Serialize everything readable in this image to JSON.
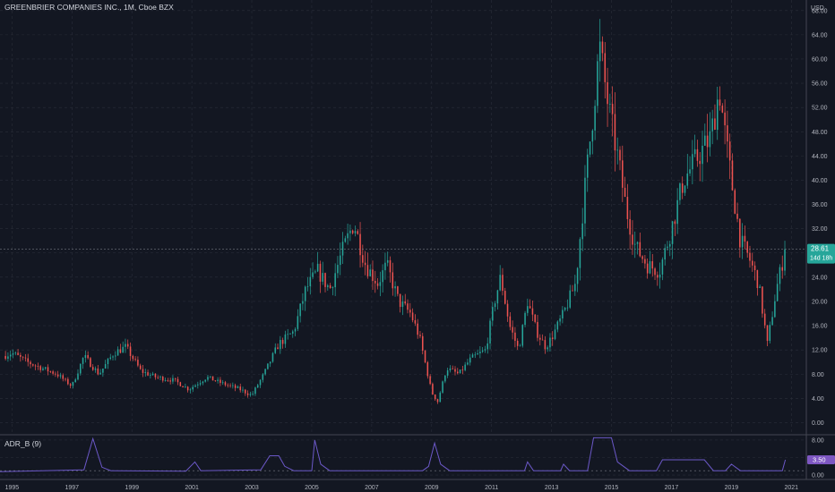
{
  "header": {
    "symbol_title": "GREENBRIER COMPANIES INC., 1M, Cboe BZX"
  },
  "indicator": {
    "title": "ADR_B (9)"
  },
  "colors": {
    "background": "#131722",
    "up": "#26a69a",
    "down": "#ef5350",
    "grid": "#2a2e39",
    "axis_text": "#b2b5be",
    "price_badge": "#26a69a",
    "indicator_line": "#6b58c7",
    "indicator_badge": "#7e57c2"
  },
  "chart_data": [
    {
      "type": "candlestick",
      "title": "GREENBRIER COMPANIES INC., 1M, Cboe BZX",
      "currency": "USD",
      "ylim": [
        -2,
        69
      ],
      "yticks": [
        0,
        4,
        8,
        12,
        16,
        20,
        24,
        28,
        32,
        36,
        40,
        44,
        48,
        52,
        56,
        60,
        64,
        68
      ],
      "ytick_labels": [
        "0.00",
        "4.00",
        "8.00",
        "12.00",
        "16.00",
        "20.00",
        "24.00",
        "28.00",
        "32.00",
        "36.00",
        "40.00",
        "44.00",
        "48.00",
        "52.00",
        "56.00",
        "60.00",
        "64.00",
        "68.00"
      ],
      "xlim": [
        1994.6,
        2021.5
      ],
      "xticks": [
        1995,
        1997,
        1999,
        2001,
        2003,
        2005,
        2007,
        2009,
        2011,
        2013,
        2015,
        2017,
        2019,
        2021
      ],
      "xtick_labels": [
        "1995",
        "1997",
        "1999",
        "2001",
        "2003",
        "2005",
        "2007",
        "2009",
        "2011",
        "2013",
        "2015",
        "2017",
        "2019",
        "2021"
      ],
      "grid": true,
      "last_price": "28.61",
      "countdown": "14d 18h",
      "close_anchors": [
        [
          1994.7,
          11.0
        ],
        [
          1995.0,
          11.5
        ],
        [
          1995.5,
          10.0
        ],
        [
          1996.0,
          9.0
        ],
        [
          1996.5,
          8.0
        ],
        [
          1997.0,
          6.0
        ],
        [
          1997.4,
          11.0
        ],
        [
          1997.9,
          8.0
        ],
        [
          1998.4,
          11.5
        ],
        [
          1998.8,
          12.5
        ],
        [
          1999.3,
          8.5
        ],
        [
          1999.8,
          7.5
        ],
        [
          2000.4,
          7.0
        ],
        [
          2000.9,
          5.5
        ],
        [
          2001.5,
          7.5
        ],
        [
          2002.0,
          6.5
        ],
        [
          2002.6,
          5.5
        ],
        [
          2003.0,
          4.5
        ],
        [
          2003.4,
          8.0
        ],
        [
          2003.9,
          13.0
        ],
        [
          2004.4,
          15.0
        ],
        [
          2004.8,
          22.0
        ],
        [
          2005.2,
          25.0
        ],
        [
          2005.6,
          22.0
        ],
        [
          2006.0,
          28.0
        ],
        [
          2006.4,
          33.0
        ],
        [
          2006.8,
          26.0
        ],
        [
          2007.2,
          23.0
        ],
        [
          2007.5,
          26.0
        ],
        [
          2007.9,
          20.0
        ],
        [
          2008.3,
          18.0
        ],
        [
          2008.6,
          14.0
        ],
        [
          2009.0,
          5.0
        ],
        [
          2009.2,
          3.5
        ],
        [
          2009.5,
          9.0
        ],
        [
          2009.9,
          8.0
        ],
        [
          2010.3,
          10.5
        ],
        [
          2010.8,
          12.0
        ],
        [
          2011.1,
          20.0
        ],
        [
          2011.3,
          24.0
        ],
        [
          2011.6,
          16.0
        ],
        [
          2011.9,
          12.0
        ],
        [
          2012.2,
          20.0
        ],
        [
          2012.5,
          15.0
        ],
        [
          2012.8,
          12.5
        ],
        [
          2013.0,
          14.0
        ],
        [
          2013.4,
          18.0
        ],
        [
          2013.8,
          23.0
        ],
        [
          2014.1,
          38.0
        ],
        [
          2014.4,
          52.0
        ],
        [
          2014.6,
          62.0
        ],
        [
          2014.9,
          52.0
        ],
        [
          2015.2,
          44.0
        ],
        [
          2015.5,
          35.0
        ],
        [
          2015.8,
          29.0
        ],
        [
          2016.2,
          26.0
        ],
        [
          2016.6,
          25.0
        ],
        [
          2017.0,
          32.0
        ],
        [
          2017.4,
          40.0
        ],
        [
          2017.9,
          44.0
        ],
        [
          2018.3,
          47.0
        ],
        [
          2018.6,
          55.0
        ],
        [
          2018.8,
          47.0
        ],
        [
          2019.0,
          40.0
        ],
        [
          2019.3,
          30.0
        ],
        [
          2019.6,
          27.0
        ],
        [
          2019.9,
          23.0
        ],
        [
          2020.2,
          13.0
        ],
        [
          2020.5,
          22.0
        ],
        [
          2020.8,
          28.61
        ]
      ]
    },
    {
      "type": "line",
      "title": "ADR_B (9)",
      "ylim": [
        -1,
        9
      ],
      "yticks": [
        0,
        4,
        8
      ],
      "ytick_labels": [
        "0.00",
        "4.00",
        "8.00"
      ],
      "reference_line": 1,
      "last_value": "3.50",
      "points": [
        [
          1994.6,
          0.8
        ],
        [
          1997.4,
          1.2
        ],
        [
          1997.7,
          8.3
        ],
        [
          1998.0,
          1.8
        ],
        [
          1998.3,
          1.0
        ],
        [
          2000.8,
          0.9
        ],
        [
          2001.1,
          3.0
        ],
        [
          2001.3,
          1.0
        ],
        [
          2003.3,
          1.2
        ],
        [
          2003.6,
          4.4
        ],
        [
          2003.9,
          4.4
        ],
        [
          2004.1,
          2.0
        ],
        [
          2004.4,
          1.0
        ],
        [
          2005.0,
          1.0
        ],
        [
          2005.1,
          8.0
        ],
        [
          2005.3,
          2.5
        ],
        [
          2005.6,
          1.0
        ],
        [
          2008.7,
          1.0
        ],
        [
          2008.9,
          2.0
        ],
        [
          2009.1,
          7.3
        ],
        [
          2009.3,
          2.5
        ],
        [
          2009.6,
          1.0
        ],
        [
          2012.1,
          1.0
        ],
        [
          2012.2,
          3.0
        ],
        [
          2012.4,
          1.0
        ],
        [
          2013.3,
          1.0
        ],
        [
          2013.4,
          2.5
        ],
        [
          2013.6,
          1.0
        ],
        [
          2014.2,
          1.0
        ],
        [
          2014.4,
          8.5
        ],
        [
          2015.0,
          8.5
        ],
        [
          2015.2,
          3.0
        ],
        [
          2015.6,
          1.0
        ],
        [
          2016.5,
          1.0
        ],
        [
          2016.7,
          3.5
        ],
        [
          2018.1,
          3.5
        ],
        [
          2018.4,
          1.0
        ],
        [
          2018.8,
          1.0
        ],
        [
          2019.0,
          2.5
        ],
        [
          2019.3,
          1.0
        ],
        [
          2020.7,
          1.0
        ],
        [
          2020.8,
          3.5
        ]
      ]
    }
  ]
}
